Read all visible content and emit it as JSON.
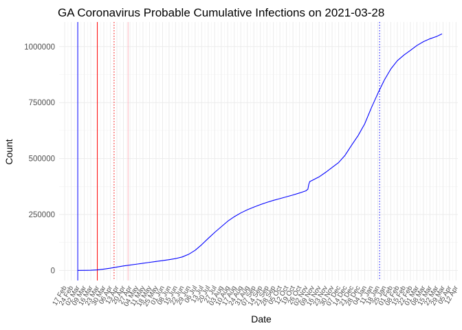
{
  "chart_data": {
    "type": "line",
    "title": "GA Coronavirus Probable Cumulative Infections on 2021-03-28",
    "xlabel": "Date",
    "ylabel": "Count",
    "ylim": [
      -45000,
      1110000
    ],
    "xlim": [
      "2020-02-11",
      "2021-04-14"
    ],
    "y_ticks": [
      0,
      250000,
      500000,
      750000,
      1000000
    ],
    "y_tick_labels": [
      "0",
      "250000",
      "500000",
      "750000",
      "1000000"
    ],
    "x_ticks": [
      "2020-02-17",
      "2020-02-24",
      "2020-03-02",
      "2020-03-09",
      "2020-03-16",
      "2020-03-23",
      "2020-03-30",
      "2020-04-06",
      "2020-04-13",
      "2020-04-20",
      "2020-04-27",
      "2020-05-04",
      "2020-05-11",
      "2020-05-18",
      "2020-05-25",
      "2020-06-01",
      "2020-06-08",
      "2020-06-15",
      "2020-06-22",
      "2020-06-29",
      "2020-07-06",
      "2020-07-13",
      "2020-07-20",
      "2020-07-27",
      "2020-08-03",
      "2020-08-10",
      "2020-08-17",
      "2020-08-24",
      "2020-08-31",
      "2020-09-07",
      "2020-09-14",
      "2020-09-21",
      "2020-09-28",
      "2020-10-05",
      "2020-10-12",
      "2020-10-19",
      "2020-10-26",
      "2020-11-02",
      "2020-11-09",
      "2020-11-16",
      "2020-11-23",
      "2020-11-30",
      "2020-12-07",
      "2020-12-14",
      "2020-12-21",
      "2020-12-28",
      "2021-01-04",
      "2021-01-11",
      "2021-01-18",
      "2021-01-25",
      "2021-02-01",
      "2021-02-08",
      "2021-02-15",
      "2021-02-22",
      "2021-03-01",
      "2021-03-08",
      "2021-03-15",
      "2021-03-22",
      "2021-03-29",
      "2021-04-05",
      "2021-04-12"
    ],
    "x_tick_labels": [
      "17 Feb",
      "24 Feb",
      "02 Mar",
      "09 Mar",
      "16 Mar",
      "23 Mar",
      "30 Mar",
      "06 Apr",
      "13 Apr",
      "20 Apr",
      "27 Apr",
      "04 May",
      "11 May",
      "18 May",
      "25 May",
      "01 Jun",
      "08 Jun",
      "15 Jun",
      "22 Jun",
      "29 Jun",
      "06 Jul",
      "13 Jul",
      "20 Jul",
      "27 Jul",
      "03 Aug",
      "10 Aug",
      "17 Aug",
      "24 Aug",
      "31 Aug",
      "07 Sep",
      "14 Sep",
      "21 Sep",
      "28 Sep",
      "05 Oct",
      "12 Oct",
      "19 Oct",
      "26 Oct",
      "02 Nov",
      "09 Nov",
      "16 Nov",
      "23 Nov",
      "30 Nov",
      "07 Dec",
      "14 Dec",
      "21 Dec",
      "28 Dec",
      "04 Jan",
      "11 Jan",
      "18 Jan",
      "25 Jan",
      "01 Feb",
      "08 Feb",
      "15 Feb",
      "22 Feb",
      "01 Mar",
      "08 Mar",
      "15 Mar",
      "22 Mar",
      "29 Mar",
      "05 Apr",
      "12 Apr"
    ],
    "series": [
      {
        "name": "Probable cumulative infections",
        "color": "#0000ff",
        "points": [
          [
            "2020-03-02",
            0
          ],
          [
            "2020-03-16",
            800
          ],
          [
            "2020-03-23",
            2500
          ],
          [
            "2020-03-30",
            6000
          ],
          [
            "2020-04-06",
            10000
          ],
          [
            "2020-04-13",
            15000
          ],
          [
            "2020-04-20",
            20000
          ],
          [
            "2020-04-27",
            24000
          ],
          [
            "2020-05-04",
            28000
          ],
          [
            "2020-05-11",
            32000
          ],
          [
            "2020-05-18",
            36000
          ],
          [
            "2020-05-25",
            40000
          ],
          [
            "2020-06-01",
            44000
          ],
          [
            "2020-06-08",
            48000
          ],
          [
            "2020-06-15",
            53000
          ],
          [
            "2020-06-22",
            60000
          ],
          [
            "2020-06-29",
            72000
          ],
          [
            "2020-07-06",
            90000
          ],
          [
            "2020-07-13",
            115000
          ],
          [
            "2020-07-20",
            143000
          ],
          [
            "2020-07-27",
            170000
          ],
          [
            "2020-08-03",
            195000
          ],
          [
            "2020-08-10",
            220000
          ],
          [
            "2020-08-17",
            240000
          ],
          [
            "2020-08-24",
            257000
          ],
          [
            "2020-08-31",
            271000
          ],
          [
            "2020-09-07",
            283000
          ],
          [
            "2020-09-14",
            294000
          ],
          [
            "2020-09-21",
            304000
          ],
          [
            "2020-09-28",
            313000
          ],
          [
            "2020-10-05",
            321000
          ],
          [
            "2020-10-12",
            329000
          ],
          [
            "2020-10-19",
            337000
          ],
          [
            "2020-10-26",
            346000
          ],
          [
            "2020-11-02",
            356000
          ],
          [
            "2020-11-04",
            363000
          ],
          [
            "2020-11-05",
            385000
          ],
          [
            "2020-11-06",
            397000
          ],
          [
            "2020-11-09",
            403000
          ],
          [
            "2020-11-16",
            418000
          ],
          [
            "2020-11-23",
            438000
          ],
          [
            "2020-11-30",
            460000
          ],
          [
            "2020-12-07",
            482000
          ],
          [
            "2020-12-14",
            515000
          ],
          [
            "2020-12-21",
            560000
          ],
          [
            "2020-12-28",
            603000
          ],
          [
            "2021-01-04",
            655000
          ],
          [
            "2021-01-11",
            725000
          ],
          [
            "2021-01-18",
            790000
          ],
          [
            "2021-01-25",
            850000
          ],
          [
            "2021-02-01",
            900000
          ],
          [
            "2021-02-08",
            937000
          ],
          [
            "2021-02-15",
            962000
          ],
          [
            "2021-02-22",
            983000
          ],
          [
            "2021-03-01",
            1005000
          ],
          [
            "2021-03-08",
            1022000
          ],
          [
            "2021-03-15",
            1035000
          ],
          [
            "2021-03-22",
            1045000
          ],
          [
            "2021-03-28",
            1057000
          ]
        ]
      }
    ],
    "reference_lines": [
      {
        "name": "vline-blue-solid",
        "date": "2020-03-02",
        "color": "#0000ff",
        "style": "solid"
      },
      {
        "name": "vline-red-solid",
        "date": "2020-03-23",
        "color": "#ff0000",
        "style": "solid"
      },
      {
        "name": "vline-red-dotted",
        "date": "2020-04-10",
        "color": "#ff0000",
        "style": "dotted"
      },
      {
        "name": "vline-pink-solid",
        "date": "2020-04-25",
        "color": "#ffb6c1",
        "style": "solid"
      },
      {
        "name": "vline-blue-dotted",
        "date": "2021-01-20",
        "color": "#0000ff",
        "style": "dotted"
      }
    ],
    "grid": true
  }
}
